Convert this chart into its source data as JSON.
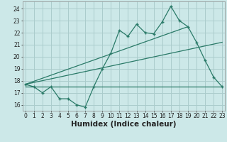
{
  "xlabel": "Humidex (Indice chaleur)",
  "x_values": [
    0,
    1,
    2,
    3,
    4,
    5,
    6,
    7,
    8,
    9,
    10,
    11,
    12,
    13,
    14,
    15,
    16,
    17,
    18,
    19,
    20,
    21,
    22,
    23
  ],
  "main_line": [
    17.7,
    17.5,
    17.0,
    17.5,
    16.5,
    16.5,
    16.0,
    15.8,
    17.5,
    19.0,
    20.3,
    22.2,
    21.7,
    22.7,
    22.0,
    21.9,
    22.9,
    24.2,
    23.0,
    22.5,
    21.2,
    19.7,
    18.3,
    17.5
  ],
  "trend_line1_x": [
    0,
    19
  ],
  "trend_line1_y": [
    17.7,
    22.5
  ],
  "trend_line2_x": [
    0,
    23
  ],
  "trend_line2_y": [
    17.7,
    21.2
  ],
  "flat_line_x": [
    0,
    23
  ],
  "flat_line_y": [
    17.5,
    17.5
  ],
  "line_color": "#2a7a68",
  "bg_color": "#cce8e8",
  "grid_color": "#aacccc",
  "ylim": [
    15.5,
    24.6
  ],
  "yticks": [
    16,
    17,
    18,
    19,
    20,
    21,
    22,
    23,
    24
  ],
  "xlim": [
    -0.3,
    23.3
  ],
  "xticks": [
    0,
    1,
    2,
    3,
    4,
    5,
    6,
    7,
    8,
    9,
    10,
    11,
    12,
    13,
    14,
    15,
    16,
    17,
    18,
    19,
    20,
    21,
    22,
    23
  ],
  "tick_fontsize": 5.5,
  "xlabel_fontsize": 7.5
}
